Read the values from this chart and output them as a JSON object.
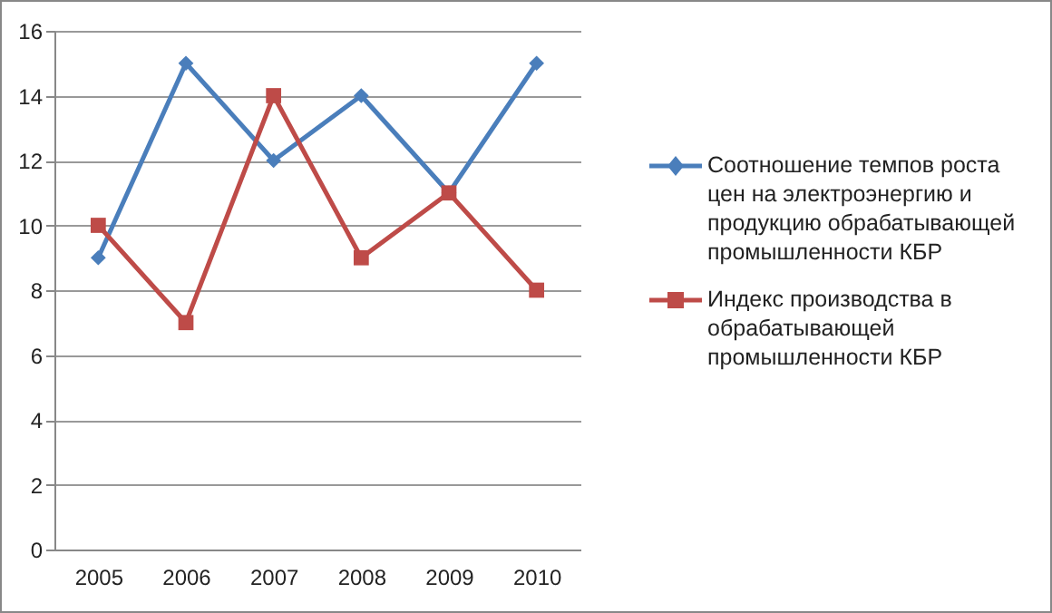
{
  "chart_data": {
    "type": "line",
    "categories": [
      "2005",
      "2006",
      "2007",
      "2008",
      "2009",
      "2010"
    ],
    "series": [
      {
        "name": "Соотношение темпов роста цен на электроэнергию и продукцию обрабатывающей промышленности КБР",
        "color": "#4a7ebb",
        "marker": "diamond",
        "values": [
          9,
          15,
          12,
          14,
          11,
          15
        ]
      },
      {
        "name": "Индекс производства в обрабатывающей промышленности  КБР",
        "color": "#be4b48",
        "marker": "square",
        "values": [
          10,
          7,
          14,
          9,
          11,
          8
        ]
      }
    ],
    "ylim": [
      0,
      16
    ],
    "yticks": [
      0,
      2,
      4,
      6,
      8,
      10,
      12,
      14,
      16
    ],
    "grid": "y",
    "legend": "right"
  }
}
